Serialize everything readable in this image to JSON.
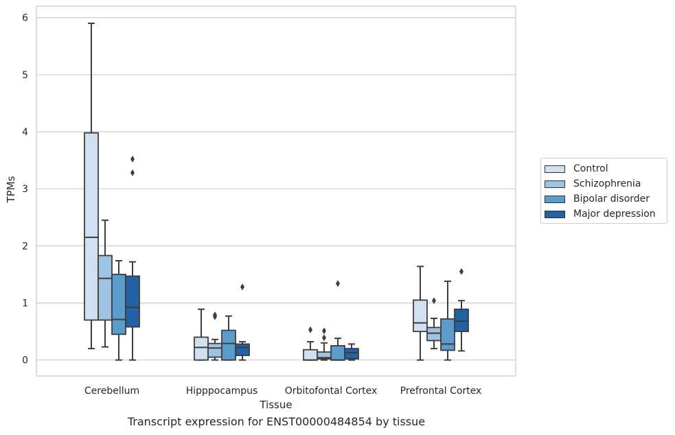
{
  "caption": "Transcript expression for ENST00000484854 by tissue",
  "chart_data": {
    "type": "boxplot",
    "xlabel": "Tissue",
    "ylabel": "TPMs",
    "ylim": [
      -0.28,
      6.2
    ],
    "yticks": [
      0,
      1,
      2,
      3,
      4,
      5,
      6
    ],
    "grid": "horizontal",
    "legend_position": "right",
    "categories": [
      "Cerebellum",
      "Hipppocampus",
      "Orbitofontal Cortex",
      "Prefrontal Cortex"
    ],
    "series": [
      {
        "name": "Control",
        "color": "#d0e0f0",
        "boxes": [
          {
            "whisker_low": 0.2,
            "q1": 0.7,
            "median": 2.15,
            "q3": 3.98,
            "whisker_high": 5.9,
            "outliers": []
          },
          {
            "whisker_low": 0.0,
            "q1": 0.0,
            "median": 0.22,
            "q3": 0.4,
            "whisker_high": 0.89,
            "outliers": []
          },
          {
            "whisker_low": 0.0,
            "q1": 0.0,
            "median": 0.0,
            "q3": 0.18,
            "whisker_high": 0.32,
            "outliers": [
              0.53
            ]
          },
          {
            "whisker_low": 0.0,
            "q1": 0.5,
            "median": 0.65,
            "q3": 1.05,
            "whisker_high": 1.64,
            "outliers": []
          }
        ]
      },
      {
        "name": "Schizophrenia",
        "color": "#9dc3e0",
        "boxes": [
          {
            "whisker_low": 0.23,
            "q1": 0.7,
            "median": 1.43,
            "q3": 1.83,
            "whisker_high": 2.45,
            "outliers": []
          },
          {
            "whisker_low": 0.0,
            "q1": 0.05,
            "median": 0.21,
            "q3": 0.29,
            "whisker_high": 0.36,
            "outliers": [
              0.76,
              0.79
            ]
          },
          {
            "whisker_low": 0.0,
            "q1": 0.02,
            "median": 0.04,
            "q3": 0.14,
            "whisker_high": 0.3,
            "outliers": [
              0.39,
              0.51
            ]
          },
          {
            "whisker_low": 0.2,
            "q1": 0.34,
            "median": 0.47,
            "q3": 0.57,
            "whisker_high": 0.73,
            "outliers": [
              1.04
            ]
          }
        ]
      },
      {
        "name": "Bipolar disorder",
        "color": "#5a9ccb",
        "boxes": [
          {
            "whisker_low": 0.0,
            "q1": 0.45,
            "median": 0.71,
            "q3": 1.5,
            "whisker_high": 1.74,
            "outliers": []
          },
          {
            "whisker_low": 0.0,
            "q1": 0.0,
            "median": 0.29,
            "q3": 0.52,
            "whisker_high": 0.77,
            "outliers": []
          },
          {
            "whisker_low": 0.0,
            "q1": 0.0,
            "median": 0.0,
            "q3": 0.25,
            "whisker_high": 0.38,
            "outliers": [
              1.34
            ]
          },
          {
            "whisker_low": 0.0,
            "q1": 0.17,
            "median": 0.28,
            "q3": 0.72,
            "whisker_high": 1.38,
            "outliers": []
          }
        ]
      },
      {
        "name": "Major depression",
        "color": "#2362a4",
        "boxes": [
          {
            "whisker_low": 0.0,
            "q1": 0.58,
            "median": 0.92,
            "q3": 1.47,
            "whisker_high": 1.72,
            "outliers": [
              3.28,
              3.52
            ]
          },
          {
            "whisker_low": 0.0,
            "q1": 0.08,
            "median": 0.22,
            "q3": 0.28,
            "whisker_high": 0.32,
            "outliers": [
              1.28
            ]
          },
          {
            "whisker_low": 0.0,
            "q1": 0.02,
            "median": 0.13,
            "q3": 0.2,
            "whisker_high": 0.28,
            "outliers": []
          },
          {
            "whisker_low": 0.16,
            "q1": 0.5,
            "median": 0.68,
            "q3": 0.89,
            "whisker_high": 1.04,
            "outliers": [
              1.55
            ]
          }
        ]
      }
    ]
  }
}
